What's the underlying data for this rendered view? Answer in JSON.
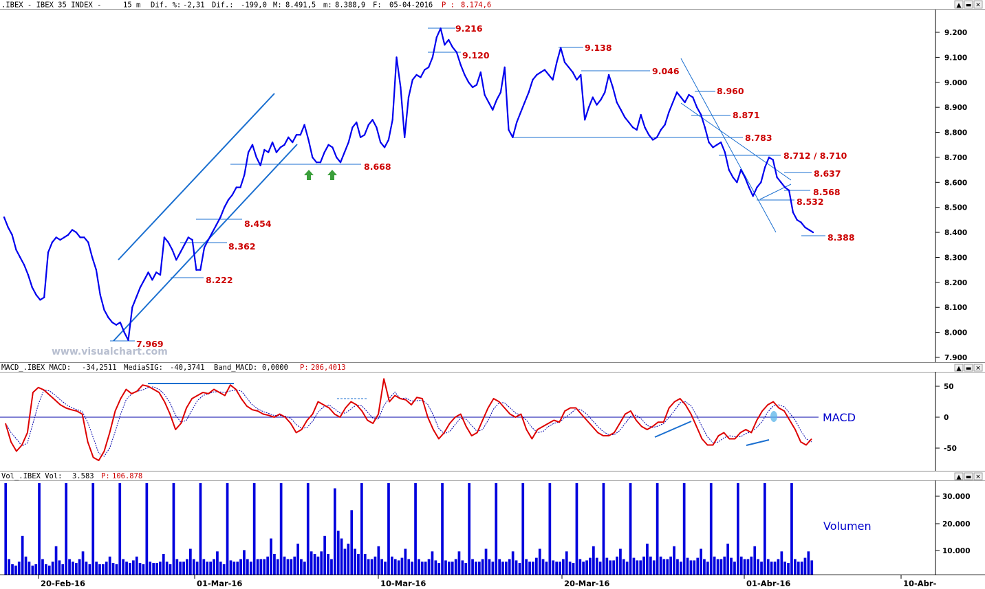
{
  "price_header": {
    "symbol": ".IBEX - IBEX 35 INDEX -",
    "period": "15 m",
    "dif_pct_label": "Dif. %:",
    "dif_pct": "-2,31",
    "dif_label": "Dif.:",
    "dif": "-199,0",
    "max_label": "M:",
    "max": "8.491,5",
    "min_label": "m:",
    "min": "8.388,9",
    "date_label": "F:",
    "date": "05-04-2016",
    "p_label": "P :",
    "p": "8.174,6"
  },
  "macd_header": {
    "name": "MACD_.IBEX MACD:",
    "macd": "-34,2511",
    "sig_label": "MediaSIG:",
    "sig": "-40,3741",
    "band_label": "Band_MACD:",
    "band": "0,0000",
    "p_label": "P:",
    "p": "206,4013"
  },
  "vol_header": {
    "name": "Vol_.IBEX Vol:",
    "vol": "3.583",
    "p_label": "P:",
    "p": "106.878"
  },
  "watermark": "www.visualchart.com",
  "macd_panel_label": "MACD",
  "volume_panel_label": "Volumen",
  "window_buttons": {
    "up": "▲",
    "minimize": "▬",
    "close": "✕"
  },
  "colors": {
    "price": "#0000ee",
    "trend": "#1a6fd0",
    "levels": "#cc0000",
    "macd": "#dd0000",
    "signal": "#0000aa",
    "volume": "#0000dd",
    "arrows": "#3a9e3a"
  },
  "chart_data": [
    {
      "type": "line",
      "panel": "price",
      "scale": "linear",
      "ylim": [
        7900,
        9240
      ],
      "y_ticks": [
        "7.900",
        "8.000",
        "8.100",
        "8.200",
        "8.300",
        "8.400",
        "8.500",
        "8.600",
        "8.700",
        "8.800",
        "8.900",
        "9.000",
        "9.100",
        "9.200"
      ],
      "x_tick_labels": [
        "20-Feb-16",
        "01-Mar-16",
        "10-Mar-16",
        "20-Mar-16",
        "01-Abr-16",
        "10-Abr-"
      ],
      "series": [
        {
          "values": [
            8460,
            8420,
            8390,
            8330,
            8300,
            8270,
            8230,
            8180,
            8150,
            8130,
            8140,
            8320,
            8360,
            8380,
            8370,
            8380,
            8390,
            8410,
            8400,
            8380,
            8380,
            8360,
            8300,
            8250,
            8150,
            8090,
            8060,
            8040,
            8030,
            8040,
            8000,
            7969,
            8100,
            8140,
            8180,
            8210,
            8240,
            8210,
            8240,
            8230,
            8380,
            8360,
            8330,
            8290,
            8320,
            8350,
            8380,
            8370,
            8250,
            8250,
            8340,
            8370,
            8400,
            8430,
            8460,
            8500,
            8530,
            8550,
            8580,
            8580,
            8630,
            8720,
            8750,
            8700,
            8668,
            8730,
            8720,
            8760,
            8720,
            8740,
            8750,
            8780,
            8760,
            8790,
            8790,
            8830,
            8770,
            8700,
            8680,
            8680,
            8720,
            8750,
            8740,
            8700,
            8680,
            8720,
            8760,
            8820,
            8840,
            8780,
            8790,
            8830,
            8850,
            8820,
            8760,
            8740,
            8770,
            8850,
            9100,
            8980,
            8780,
            8940,
            9010,
            9030,
            9020,
            9050,
            9060,
            9100,
            9180,
            9216,
            9150,
            9170,
            9140,
            9120,
            9070,
            9030,
            9000,
            8980,
            8990,
            9040,
            8950,
            8920,
            8890,
            8930,
            8960,
            9060,
            8810,
            8780,
            8840,
            8880,
            8920,
            8960,
            9010,
            9030,
            9040,
            9050,
            9030,
            9010,
            9080,
            9138,
            9080,
            9060,
            9040,
            9010,
            9030,
            8850,
            8900,
            8940,
            8910,
            8930,
            8960,
            9030,
            8980,
            8920,
            8890,
            8860,
            8840,
            8820,
            8810,
            8870,
            8820,
            8790,
            8770,
            8780,
            8810,
            8830,
            8880,
            8920,
            8960,
            8940,
            8920,
            8950,
            8940,
            8900,
            8871,
            8820,
            8760,
            8740,
            8750,
            8760,
            8720,
            8650,
            8620,
            8600,
            8650,
            8620,
            8580,
            8545,
            8580,
            8600,
            8660,
            8700,
            8690,
            8620,
            8600,
            8580,
            8568,
            8480,
            8450,
            8440,
            8420,
            8410,
            8400
          ]
        }
      ],
      "level_labels": [
        "9.216",
        "9.120",
        "9.138",
        "9.046",
        "8.960",
        "8.871",
        "8.783",
        "8.712 / 8.710",
        "8.668",
        "8.637",
        "8.568",
        "8.532",
        "8.454",
        "8.388",
        "8.362",
        "8.222",
        "7.969"
      ],
      "annotations": [
        "ascending channel",
        "descending channel",
        "two green up arrows at 8.668 support"
      ]
    },
    {
      "type": "line",
      "panel": "macd",
      "ylim": [
        -75,
        75
      ],
      "y_ticks": [
        "50",
        "0",
        "-50"
      ],
      "series": [
        {
          "name": "MACD",
          "values": [
            -10,
            -40,
            -55,
            -45,
            -25,
            40,
            48,
            44,
            36,
            28,
            20,
            15,
            12,
            10,
            5,
            -40,
            -65,
            -70,
            -55,
            -25,
            10,
            30,
            45,
            38,
            42,
            52,
            50,
            45,
            40,
            25,
            5,
            -20,
            -10,
            15,
            30,
            35,
            40,
            38,
            45,
            40,
            35,
            52,
            45,
            30,
            18,
            12,
            10,
            5,
            3,
            0,
            5,
            0,
            -10,
            -25,
            -20,
            -5,
            5,
            25,
            20,
            15,
            5,
            0,
            15,
            25,
            20,
            10,
            -5,
            -10,
            5,
            62,
            25,
            35,
            30,
            28,
            20,
            32,
            30,
            0,
            -20,
            -35,
            -25,
            -10,
            0,
            5,
            -15,
            -30,
            -25,
            -5,
            15,
            30,
            25,
            15,
            5,
            0,
            5,
            -20,
            -35,
            -20,
            -15,
            -10,
            -5,
            -8,
            10,
            15,
            15,
            5,
            -5,
            -15,
            -25,
            -30,
            -30,
            -25,
            -10,
            5,
            10,
            -5,
            -15,
            -20,
            -15,
            -8,
            -8,
            15,
            25,
            30,
            20,
            5,
            -15,
            -35,
            -45,
            -45,
            -30,
            -25,
            -35,
            -35,
            -25,
            -20,
            -25,
            -5,
            10,
            20,
            25,
            15,
            10,
            -5,
            -20,
            -40,
            -45,
            -35
          ]
        }
      ]
    },
    {
      "type": "bar",
      "panel": "volume",
      "ylim": [
        0,
        37000
      ],
      "y_ticks": [
        "10.000",
        "20.000",
        "30.000"
      ],
      "series": [
        {
          "name": "Volumen",
          "values": [
            35500,
            6000,
            4000,
            3500,
            5000,
            15000,
            7000,
            5000,
            3500,
            4000,
            35500,
            6000,
            4000,
            3500,
            5000,
            11000,
            5500,
            4000,
            35500,
            6000,
            5000,
            4500,
            6000,
            9000,
            5000,
            4000,
            35500,
            5000,
            4000,
            4000,
            5000,
            7000,
            4500,
            4000,
            35500,
            6000,
            5000,
            4500,
            5500,
            7000,
            4500,
            4000,
            35500,
            5000,
            4500,
            4500,
            5000,
            8000,
            5000,
            4000,
            35500,
            6000,
            5000,
            5000,
            6000,
            10000,
            6000,
            5000,
            35500,
            6000,
            5000,
            5000,
            6000,
            9000,
            5000,
            4000,
            35500,
            5500,
            5000,
            5000,
            6000,
            9500,
            6000,
            5000,
            35500,
            6000,
            6000,
            6000,
            7000,
            14000,
            8000,
            6000,
            35500,
            7000,
            6000,
            6000,
            7000,
            12000,
            6000,
            5000,
            35500,
            9000,
            8000,
            7000,
            9000,
            15000,
            8000,
            6000,
            33500,
            17000,
            14000,
            10000,
            12000,
            25000,
            10000,
            8000,
            35500,
            8000,
            6000,
            6000,
            7000,
            11000,
            6000,
            5000,
            35500,
            7000,
            6000,
            5500,
            6500,
            10000,
            6000,
            5000,
            35500,
            6000,
            5000,
            5000,
            6000,
            9000,
            5500,
            4500,
            35500,
            5500,
            5000,
            5000,
            6000,
            9000,
            5500,
            4500,
            35500,
            6000,
            5000,
            5000,
            6000,
            10000,
            6000,
            5000,
            35500,
            6000,
            5000,
            5000,
            6000,
            9000,
            5500,
            4500,
            35500,
            6000,
            5000,
            5000,
            6500,
            10000,
            6000,
            5000,
            35500,
            5500,
            5000,
            5000,
            6000,
            9000,
            5000,
            4500,
            35500,
            6000,
            5000,
            5500,
            6500,
            11000,
            6500,
            5000,
            35500,
            6500,
            5500,
            5500,
            7000,
            10000,
            6000,
            5000,
            35500,
            6500,
            5500,
            5500,
            7000,
            12000,
            7000,
            5500,
            35500,
            7000,
            6000,
            6000,
            7000,
            11000,
            6000,
            5000,
            35500,
            6500,
            5500,
            5500,
            6500,
            10000,
            6000,
            5000,
            35500,
            7000,
            6000,
            6000,
            7000,
            12000,
            6500,
            5000,
            35500,
            7000,
            6000,
            6000,
            7000,
            11000,
            6000,
            5000,
            35500,
            6000,
            5000,
            5000,
            6000,
            9000,
            5000,
            4500,
            35500,
            6000,
            5000,
            5000,
            6500,
            9000,
            5500
          ]
        }
      ]
    }
  ]
}
